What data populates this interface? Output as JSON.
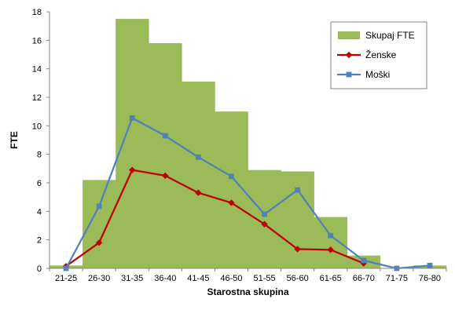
{
  "chart_data": {
    "type": "bar",
    "categories": [
      "21-25",
      "26-30",
      "31-35",
      "36-40",
      "41-45",
      "46-50",
      "51-55",
      "56-60",
      "61-65",
      "66-70",
      "71-75",
      "76-80"
    ],
    "xlabel": "Starostna skupina",
    "ylabel": "FTE",
    "ylim": [
      0,
      18
    ],
    "yticks": [
      0,
      2,
      4,
      6,
      8,
      10,
      12,
      14,
      16,
      18
    ],
    "grid": false,
    "legend_position": "top-right",
    "series": [
      {
        "name": "Skupaj FTE",
        "kind": "bar",
        "color": "#9bbb59",
        "values": [
          0.2,
          6.2,
          17.5,
          15.8,
          13.1,
          11.0,
          6.9,
          6.8,
          3.6,
          0.9,
          0.0,
          0.2
        ]
      },
      {
        "name": "Ženske",
        "kind": "line",
        "marker": "diamond",
        "color": "#c00000",
        "values": [
          0.15,
          1.8,
          6.9,
          6.5,
          5.3,
          4.6,
          3.1,
          1.35,
          1.3,
          0.35,
          null,
          null
        ]
      },
      {
        "name": "Moški",
        "kind": "line",
        "marker": "square",
        "color": "#4f81bd",
        "values": [
          0.0,
          4.35,
          10.55,
          9.3,
          7.8,
          6.45,
          3.8,
          5.5,
          2.3,
          0.55,
          0.0,
          0.2
        ]
      }
    ]
  }
}
